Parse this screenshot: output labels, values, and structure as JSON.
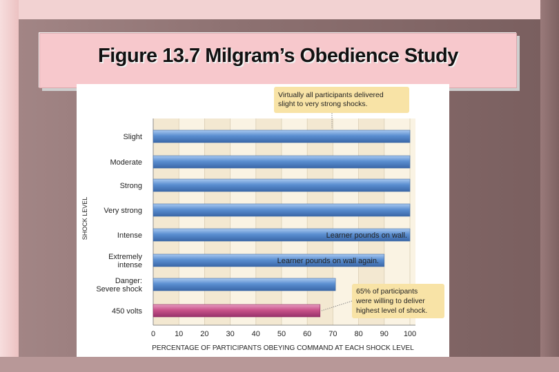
{
  "slide": {
    "title": "Figure 13.7 Milgram’s Obedience Study"
  },
  "colors": {
    "blue_bar": "#5b8fd1",
    "pink_bar": "#c9538a",
    "callout": "#f8e3a6",
    "band_light": "#faf3e3",
    "band_dark": "#f3e8d1"
  },
  "chart_data": {
    "type": "bar",
    "orientation": "horizontal",
    "title": "",
    "xlabel": "PERCENTAGE OF PARTICIPANTS OBEYING COMMAND AT EACH SHOCK LEVEL",
    "ylabel": "SHOCK LEVEL",
    "xlim": [
      0,
      100
    ],
    "xticks": [
      "0",
      "10",
      "20",
      "30",
      "40",
      "50",
      "60",
      "70",
      "80",
      "90",
      "100"
    ],
    "categories": [
      [
        "Slight"
      ],
      [
        "Moderate"
      ],
      [
        "Strong"
      ],
      [
        "Very strong"
      ],
      [
        "Intense"
      ],
      [
        "Extremely",
        "intense"
      ],
      [
        "Danger:",
        "Severe shock"
      ],
      [
        "450 volts"
      ]
    ],
    "values": [
      100,
      100,
      100,
      100,
      100,
      90,
      71,
      65
    ],
    "highlight_index": 7,
    "annotations": [
      {
        "lines": [
          "Virtually all participants delivered",
          "slight to very strong shocks."
        ],
        "type": "callout"
      },
      {
        "lines": [
          "Learner pounds on wall."
        ],
        "type": "inline",
        "bar_index": 4
      },
      {
        "lines": [
          "Learner pounds on wall again."
        ],
        "type": "inline",
        "bar_index": 5
      },
      {
        "lines": [
          "65% of participants",
          "were willing to deliver",
          "highest level of shock."
        ],
        "type": "callout",
        "bar_index": 7
      }
    ]
  }
}
